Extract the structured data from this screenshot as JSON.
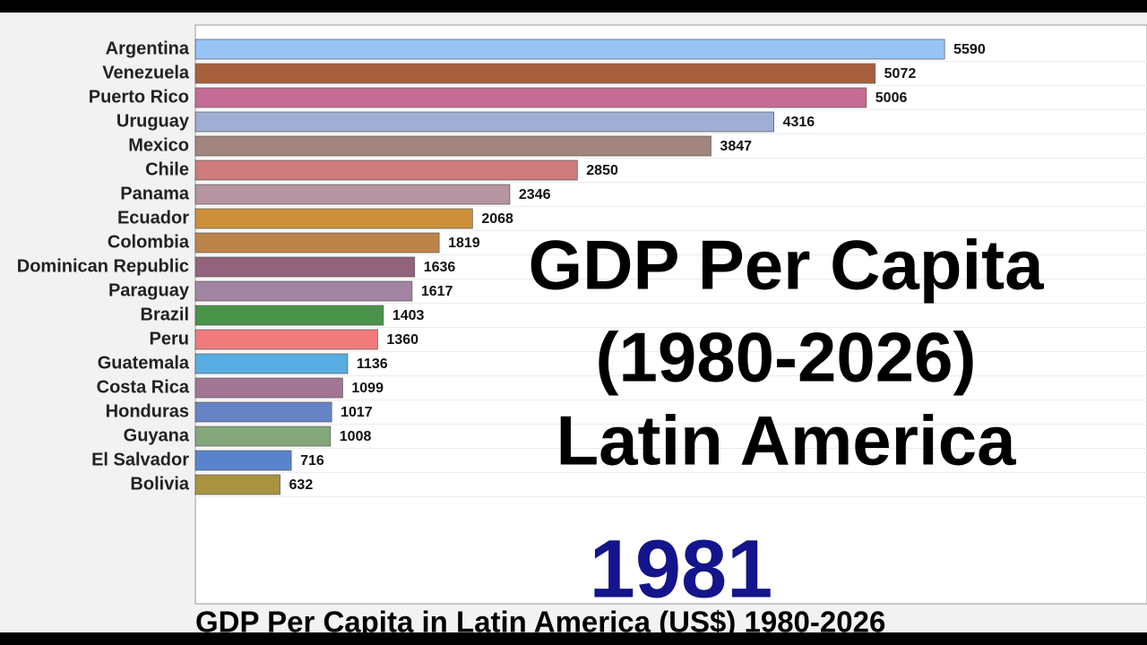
{
  "chart_data": {
    "type": "bar",
    "orientation": "horizontal",
    "title_lines": [
      "GDP Per Capita",
      "(1980-2026)",
      "Latin America"
    ],
    "year": "1981",
    "caption": "GDP Per Capita in Latin America (US$) 1980-2026",
    "categories": [
      "Argentina",
      "Venezuela",
      "Puerto Rico",
      "Uruguay",
      "Mexico",
      "Chile",
      "Panama",
      "Ecuador",
      "Colombia",
      "Dominican Republic",
      "Paraguay",
      "Brazil",
      "Peru",
      "Guatemala",
      "Costa Rica",
      "Honduras",
      "Guyana",
      "El Salvador",
      "Bolivia"
    ],
    "values": [
      5590,
      5072,
      5006,
      4316,
      3847,
      2850,
      2346,
      2068,
      1819,
      1636,
      1617,
      1403,
      1360,
      1136,
      1099,
      1017,
      1008,
      716,
      632
    ],
    "colors": [
      "#8fbff5",
      "#a0522d",
      "#c0608a",
      "#9aa8d0",
      "#9b7b74",
      "#c97070",
      "#b08c9a",
      "#c8872a",
      "#b87a3a",
      "#8a5570",
      "#9a7a9a",
      "#3a8a3a",
      "#f07070",
      "#4aa8e0",
      "#9a6a8a",
      "#5a7ac0",
      "#7aa070",
      "#4a7ac8",
      "#a08a30"
    ],
    "xlim": [
      0,
      7100
    ]
  }
}
